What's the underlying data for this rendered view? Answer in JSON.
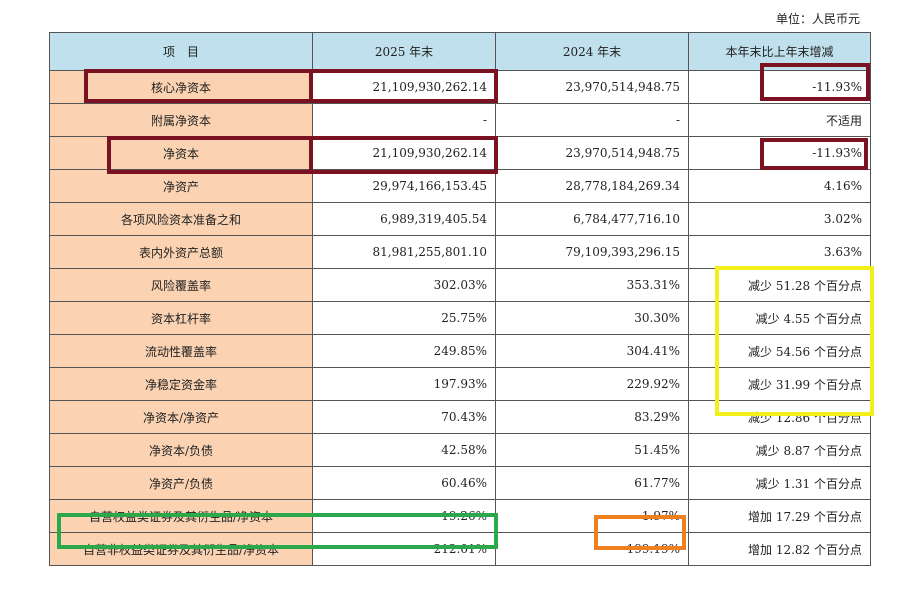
{
  "unit_label": "单位：人民币元",
  "headers": [
    "项　目",
    "2025 年末",
    "2024 年末",
    "本年末比上年末增减"
  ],
  "rows": [
    {
      "item": "核心净资本",
      "y2025": "21,109,930,262.14",
      "y2024": "23,970,514,948.75",
      "change": "-11.93%"
    },
    {
      "item": "附属净资本",
      "y2025": "-",
      "y2024": "-",
      "change": "不适用"
    },
    {
      "item": "净资本",
      "y2025": "21,109,930,262.14",
      "y2024": "23,970,514,948.75",
      "change": "-11.93%"
    },
    {
      "item": "净资产",
      "y2025": "29,974,166,153.45",
      "y2024": "28,778,184,269.34",
      "change": "4.16%"
    },
    {
      "item": "各项风险资本准备之和",
      "y2025": "6,989,319,405.54",
      "y2024": "6,784,477,716.10",
      "change": "3.02%"
    },
    {
      "item": "表内外资产总额",
      "y2025": "81,981,255,801.10",
      "y2024": "79,109,393,296.15",
      "change": "3.63%"
    },
    {
      "item": "风险覆盖率",
      "y2025": "302.03%",
      "y2024": "353.31%",
      "change": "减少 51.28 个百分点"
    },
    {
      "item": "资本杠杆率",
      "y2025": "25.75%",
      "y2024": "30.30%",
      "change": "减少 4.55 个百分点"
    },
    {
      "item": "流动性覆盖率",
      "y2025": "249.85%",
      "y2024": "304.41%",
      "change": "减少 54.56 个百分点"
    },
    {
      "item": "净稳定资金率",
      "y2025": "197.93%",
      "y2024": "229.92%",
      "change": "减少 31.99 个百分点"
    },
    {
      "item": "净资本/净资产",
      "y2025": "70.43%",
      "y2024": "83.29%",
      "change": "减少 12.86 个百分点"
    },
    {
      "item": "净资本/负债",
      "y2025": "42.58%",
      "y2024": "51.45%",
      "change": "减少 8.87 个百分点"
    },
    {
      "item": "净资产/负债",
      "y2025": "60.46%",
      "y2024": "61.77%",
      "change": "减少 1.31 个百分点"
    },
    {
      "item": "自营权益类证券及其衍生品/净资本",
      "y2025": "19.26%",
      "y2024": "1.97%",
      "change": "增加 17.29 个百分点"
    },
    {
      "item": "自营非权益类证券及其衍生品/净资本",
      "y2025": "212.01%",
      "y2024": "199.19%",
      "change": "增加 12.82 个百分点"
    }
  ],
  "colors": {
    "header_bg": "#bfe0ec",
    "item_bg": "#fbd3b2",
    "highlight_maroon": "#7b1222",
    "highlight_yellow": "#f2ef1a",
    "highlight_green": "#2aa84a",
    "highlight_orange": "#f0801e"
  }
}
